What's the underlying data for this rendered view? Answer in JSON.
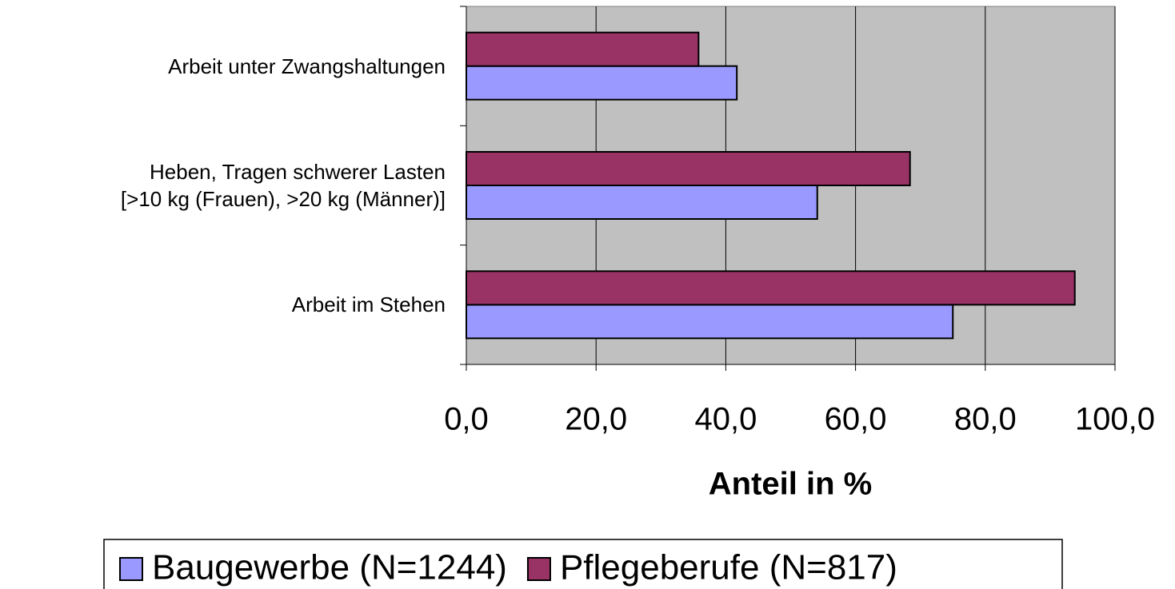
{
  "chart_data": {
    "type": "hbar",
    "categories": [
      "Arbeit unter Zwangshaltungen",
      "Heben, Tragen schwerer Lasten\n[>10 kg (Frauen), >20 kg (Männer)]",
      "Arbeit im Stehen"
    ],
    "series": [
      {
        "name": "Baugewerbe (N=1244)",
        "color": "#9999ff",
        "values": [
          41.7,
          54.1,
          75.0
        ]
      },
      {
        "name": "Pflegeberufe (N=817)",
        "color": "#993366",
        "values": [
          35.8,
          68.4,
          93.8
        ]
      }
    ],
    "xlim": [
      0,
      100
    ],
    "xticks": [
      {
        "value": 0,
        "label": "0,0"
      },
      {
        "value": 20,
        "label": "20,0"
      },
      {
        "value": 40,
        "label": "40,0"
      },
      {
        "value": 60,
        "label": "60,0"
      },
      {
        "value": 80,
        "label": "80,0"
      },
      {
        "value": 100,
        "label": "100,0"
      }
    ],
    "xlabel": "Anteil in %",
    "grid": true,
    "legend": "bottom"
  }
}
